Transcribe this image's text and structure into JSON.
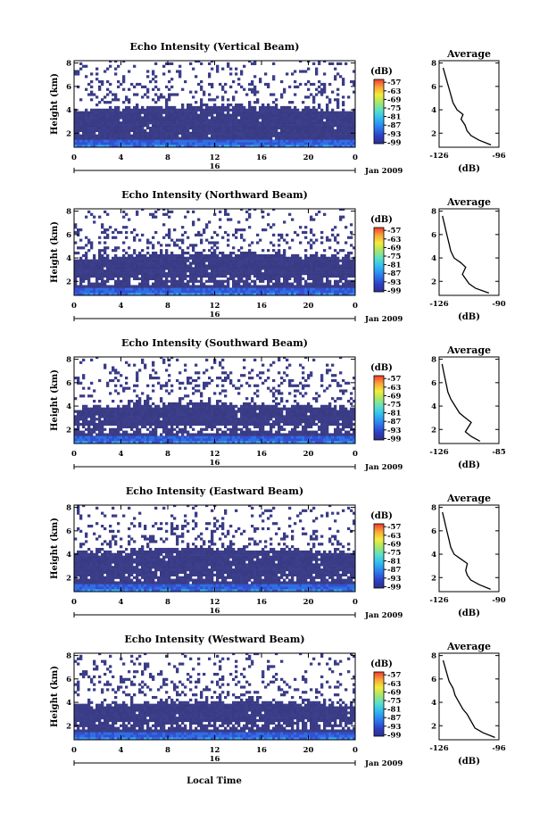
{
  "chart_data": {
    "type": "heatmap",
    "x_label": "Local Time",
    "date_label": "Jan 2009",
    "day_label": "16",
    "y_label": "Height (km)",
    "x_ticks": [
      "0",
      "4",
      "8",
      "12",
      "16",
      "20",
      "0"
    ],
    "x_range": [
      0,
      24
    ],
    "y_ticks": [
      "2",
      "4",
      "6",
      "8"
    ],
    "y_range": [
      0.8,
      8.2
    ],
    "colorbar": {
      "unit": "(dB)",
      "ticks": [
        "-57",
        "-63",
        "-69",
        "-75",
        "-81",
        "-87",
        "-93",
        "-99"
      ],
      "range": [
        -100,
        -55
      ]
    },
    "average_panel": {
      "title": "Average",
      "x_label": "(dB)",
      "y_ticks": [
        "2",
        "4",
        "6",
        "8"
      ]
    },
    "panels": [
      {
        "title": "Echo Intensity (Vertical Beam)",
        "avg_x_ticks": [
          "-126",
          "-96"
        ],
        "avg_x_range": [
          -126,
          -96
        ],
        "average_profile": [
          [
            -100,
            1.0
          ],
          [
            -106,
            1.4
          ],
          [
            -110,
            1.8
          ],
          [
            -112,
            2.2
          ],
          [
            -113,
            2.7
          ],
          [
            -115,
            3.2
          ],
          [
            -114,
            3.6
          ],
          [
            -117,
            4.0
          ],
          [
            -119,
            4.6
          ],
          [
            -120,
            5.2
          ],
          [
            -121,
            5.8
          ],
          [
            -122,
            6.4
          ],
          [
            -123,
            7.0
          ],
          [
            -124,
            7.6
          ]
        ]
      },
      {
        "title": "Echo Intensity (Northward Beam)",
        "avg_x_ticks": [
          "-126",
          "-90"
        ],
        "avg_x_range": [
          -126,
          -90
        ],
        "average_profile": [
          [
            -96,
            1.0
          ],
          [
            -104,
            1.4
          ],
          [
            -108,
            1.8
          ],
          [
            -110,
            2.2
          ],
          [
            -112,
            2.6
          ],
          [
            -110,
            3.2
          ],
          [
            -113,
            3.6
          ],
          [
            -117,
            4.0
          ],
          [
            -119,
            4.6
          ],
          [
            -120,
            5.2
          ],
          [
            -121,
            5.8
          ],
          [
            -122,
            6.4
          ],
          [
            -123,
            7.0
          ],
          [
            -124,
            7.6
          ]
        ]
      },
      {
        "title": "Echo Intensity (Southward Beam)",
        "avg_x_ticks": [
          "-126",
          "-85"
        ],
        "avg_x_range": [
          -126,
          -85
        ],
        "average_profile": [
          [
            -98,
            1.0
          ],
          [
            -104,
            1.4
          ],
          [
            -108,
            1.8
          ],
          [
            -104,
            2.6
          ],
          [
            -108,
            3.0
          ],
          [
            -112,
            3.4
          ],
          [
            -115,
            4.0
          ],
          [
            -118,
            4.6
          ],
          [
            -120,
            5.2
          ],
          [
            -121,
            5.8
          ],
          [
            -122,
            6.4
          ],
          [
            -123,
            7.0
          ],
          [
            -124,
            7.6
          ]
        ]
      },
      {
        "title": "Echo Intensity (Eastward Beam)",
        "avg_x_ticks": [
          "-126",
          "-90"
        ],
        "avg_x_range": [
          -126,
          -90
        ],
        "average_profile": [
          [
            -95,
            1.0
          ],
          [
            -102,
            1.4
          ],
          [
            -107,
            1.8
          ],
          [
            -109,
            2.2
          ],
          [
            -110,
            2.6
          ],
          [
            -109,
            3.2
          ],
          [
            -113,
            3.6
          ],
          [
            -117,
            4.0
          ],
          [
            -119,
            4.6
          ],
          [
            -120,
            5.2
          ],
          [
            -121,
            5.8
          ],
          [
            -122,
            6.4
          ],
          [
            -123,
            7.0
          ],
          [
            -124,
            7.6
          ]
        ]
      },
      {
        "title": "Echo Intensity (Westward Beam)",
        "avg_x_ticks": [
          "-126",
          "-96"
        ],
        "avg_x_range": [
          -126,
          -96
        ],
        "average_profile": [
          [
            -98,
            1.0
          ],
          [
            -104,
            1.4
          ],
          [
            -108,
            1.8
          ],
          [
            -110,
            2.4
          ],
          [
            -112,
            3.0
          ],
          [
            -114,
            3.4
          ],
          [
            -116,
            4.0
          ],
          [
            -118,
            4.6
          ],
          [
            -119,
            5.2
          ],
          [
            -121,
            5.8
          ],
          [
            -122,
            6.4
          ],
          [
            -123,
            7.0
          ],
          [
            -124,
            7.6
          ]
        ]
      }
    ]
  }
}
